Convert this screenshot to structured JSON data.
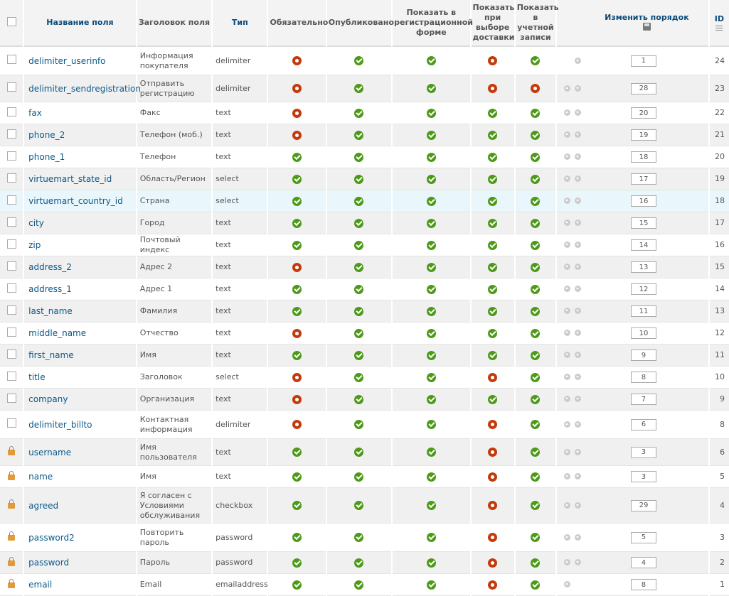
{
  "header": {
    "name": "Название поля",
    "title": "Заголовок поля",
    "type": "Тип",
    "required": "Обязательно",
    "published": "Опубликовано",
    "registration": "Показать в регистрационной форме",
    "shipment": "Показать при выборе доставки",
    "account": "Показать в учетной записи",
    "reorder": "Изменить порядок",
    "id": "ID"
  },
  "colors": {
    "link": "#0b5a8a",
    "ok": "#4d9a18",
    "no": "#c43a0c"
  },
  "rows": [
    {
      "name": "delimiter_userinfo",
      "title": "Информация покупателя",
      "type": "delimiter",
      "s": [
        0,
        1,
        1,
        0,
        1
      ],
      "up": false,
      "down": true,
      "order": "1",
      "id": "24",
      "lock": false
    },
    {
      "name": "delimiter_sendregistration",
      "title": "Отправить регистрацию",
      "type": "delimiter",
      "s": [
        0,
        1,
        1,
        0,
        0
      ],
      "up": true,
      "down": true,
      "order": "28",
      "id": "23",
      "lock": false
    },
    {
      "name": "fax",
      "title": "Факс",
      "type": "text",
      "s": [
        0,
        1,
        1,
        1,
        1
      ],
      "up": true,
      "down": true,
      "order": "20",
      "id": "22",
      "lock": false
    },
    {
      "name": "phone_2",
      "title": "Телефон (моб.)",
      "type": "text",
      "s": [
        0,
        1,
        1,
        1,
        1
      ],
      "up": true,
      "down": true,
      "order": "19",
      "id": "21",
      "lock": false
    },
    {
      "name": "phone_1",
      "title": "Телефон",
      "type": "text",
      "s": [
        1,
        1,
        1,
        1,
        1
      ],
      "up": true,
      "down": true,
      "order": "18",
      "id": "20",
      "lock": false
    },
    {
      "name": "virtuemart_state_id",
      "title": "Область/Регион",
      "type": "select",
      "s": [
        1,
        1,
        1,
        1,
        1
      ],
      "up": true,
      "down": true,
      "order": "17",
      "id": "19",
      "lock": false
    },
    {
      "name": "virtuemart_country_id",
      "title": "Страна",
      "type": "select",
      "s": [
        1,
        1,
        1,
        1,
        1
      ],
      "up": true,
      "down": true,
      "order": "16",
      "id": "18",
      "lock": false
    },
    {
      "name": "city",
      "title": "Город",
      "type": "text",
      "s": [
        1,
        1,
        1,
        1,
        1
      ],
      "up": true,
      "down": true,
      "order": "15",
      "id": "17",
      "lock": false
    },
    {
      "name": "zip",
      "title": "Почтовый индекс",
      "type": "text",
      "s": [
        1,
        1,
        1,
        1,
        1
      ],
      "up": true,
      "down": true,
      "order": "14",
      "id": "16",
      "lock": false
    },
    {
      "name": "address_2",
      "title": "Адрес 2",
      "type": "text",
      "s": [
        0,
        1,
        1,
        1,
        1
      ],
      "up": true,
      "down": true,
      "order": "13",
      "id": "15",
      "lock": false
    },
    {
      "name": "address_1",
      "title": "Адрес 1",
      "type": "text",
      "s": [
        1,
        1,
        1,
        1,
        1
      ],
      "up": true,
      "down": true,
      "order": "12",
      "id": "14",
      "lock": false
    },
    {
      "name": "last_name",
      "title": "Фамилия",
      "type": "text",
      "s": [
        1,
        1,
        1,
        1,
        1
      ],
      "up": true,
      "down": true,
      "order": "11",
      "id": "13",
      "lock": false
    },
    {
      "name": "middle_name",
      "title": "Отчество",
      "type": "text",
      "s": [
        0,
        1,
        1,
        1,
        1
      ],
      "up": true,
      "down": true,
      "order": "10",
      "id": "12",
      "lock": false
    },
    {
      "name": "first_name",
      "title": "Имя",
      "type": "text",
      "s": [
        1,
        1,
        1,
        1,
        1
      ],
      "up": true,
      "down": true,
      "order": "9",
      "id": "11",
      "lock": false
    },
    {
      "name": "title",
      "title": "Заголовок",
      "type": "select",
      "s": [
        0,
        1,
        1,
        0,
        1
      ],
      "up": true,
      "down": true,
      "order": "8",
      "id": "10",
      "lock": false
    },
    {
      "name": "company",
      "title": "Организация",
      "type": "text",
      "s": [
        0,
        1,
        1,
        1,
        1
      ],
      "up": true,
      "down": true,
      "order": "7",
      "id": "9",
      "lock": false
    },
    {
      "name": "delimiter_billto",
      "title": "Контактная информация",
      "type": "delimiter",
      "s": [
        0,
        1,
        1,
        0,
        1
      ],
      "up": true,
      "down": true,
      "order": "6",
      "id": "8",
      "lock": false
    },
    {
      "name": "username",
      "title": "Имя пользователя",
      "type": "text",
      "s": [
        1,
        1,
        1,
        0,
        1
      ],
      "up": true,
      "down": true,
      "order": "3",
      "id": "6",
      "lock": true
    },
    {
      "name": "name",
      "title": "Имя",
      "type": "text",
      "s": [
        1,
        1,
        1,
        0,
        1
      ],
      "up": true,
      "down": true,
      "order": "3",
      "id": "5",
      "lock": true
    },
    {
      "name": "agreed",
      "title": "Я согласен с Условиями обслуживания",
      "type": "checkbox",
      "s": [
        1,
        1,
        1,
        0,
        1
      ],
      "up": true,
      "down": true,
      "order": "29",
      "id": "4",
      "lock": true
    },
    {
      "name": "password2",
      "title": "Повторить пароль",
      "type": "password",
      "s": [
        1,
        1,
        1,
        0,
        1
      ],
      "up": true,
      "down": true,
      "order": "5",
      "id": "3",
      "lock": true
    },
    {
      "name": "password",
      "title": "Пароль",
      "type": "password",
      "s": [
        1,
        1,
        1,
        0,
        1
      ],
      "up": true,
      "down": true,
      "order": "4",
      "id": "2",
      "lock": true
    },
    {
      "name": "email",
      "title": "Email",
      "type": "emailaddress",
      "s": [
        1,
        1,
        1,
        0,
        1
      ],
      "up": true,
      "down": false,
      "order": "8",
      "id": "1",
      "lock": true
    }
  ]
}
